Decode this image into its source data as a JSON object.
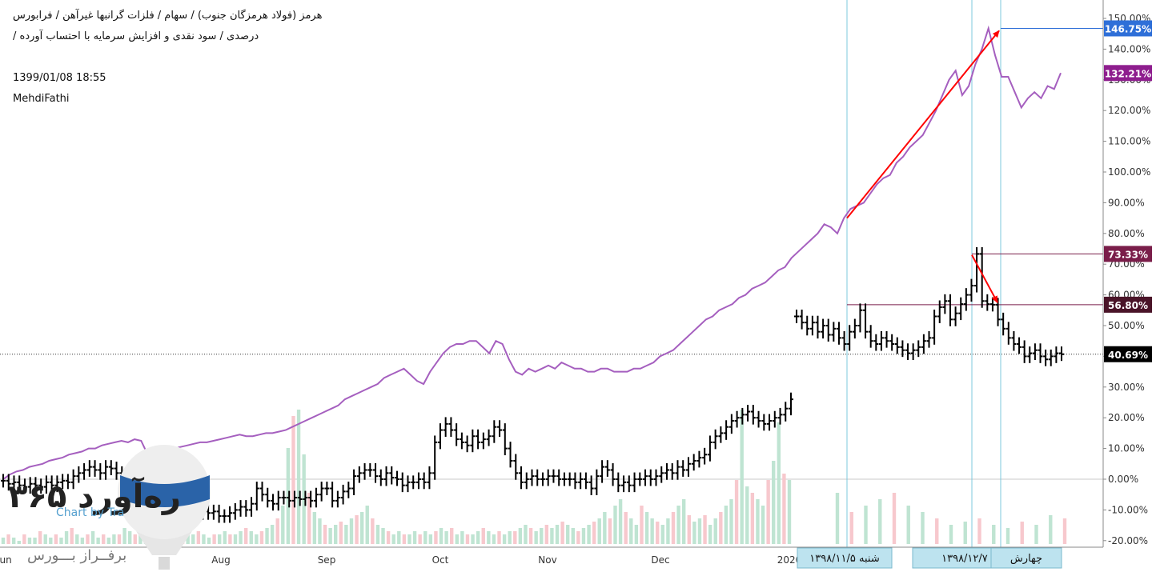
{
  "header": {
    "title_line1": "هرمز (فولاد هرمزگان جنوب) / سهام / فلزات گرانبها غیرآهن / فرابورس",
    "title_line2": "درصدی / سود نقدی و افزایش سرمایه با احتساب آورده /",
    "date": "1399/01/08 18:55",
    "author": "MehdiFathi"
  },
  "watermark": {
    "brand": "ره‌آورد ۳۶۵",
    "subtitle": "برفــراز بـــورس",
    "platform_partial": "Chart by Tra"
  },
  "colors": {
    "index_line": "#a55fbf",
    "price_bars": "#000000",
    "volume_up": "#bfe4d2",
    "volume_down": "#f7c8cd",
    "trend_arrow": "#ff0000",
    "vertical_marker": "#7ec8de",
    "tag_index": "#8e1e8e",
    "tag_high": "#7a1e4a",
    "tag_level": "#4a1428",
    "tag_last": "#000000",
    "tag_peak": "#2e6fd8",
    "date_label_bg": "#bde3ef"
  },
  "chart_data": {
    "type": "line",
    "y_axis": {
      "unit": "%",
      "ylim": [
        -21,
        152
      ],
      "ticks": [
        150,
        140,
        130,
        120,
        110,
        100,
        90,
        80,
        70,
        60,
        50,
        40,
        30,
        20,
        10,
        0,
        -10,
        -20
      ],
      "tick_labels": [
        "150.00%",
        "140.00%",
        "130.00%",
        "120.00%",
        "110.00%",
        "100.00%",
        "90.00%",
        "80.00%",
        "70.00%",
        "60.00%",
        "50.00%",
        "40.00%",
        "30.00%",
        "20.00%",
        "10.00%",
        "0.00%",
        "-10.00%",
        "-20.00%"
      ]
    },
    "x_axis": {
      "labels": [
        "Jun",
        "Aug",
        "Sep",
        "Oct",
        "Nov",
        "Dec",
        "2020"
      ],
      "date_labels": [
        "شنبه ۱۳۹۸/۱۱/۵",
        "چهارشنبه ۱۳۹۸/۱۲/۷",
        "چهارش"
      ]
    },
    "index_series": {
      "name": "",
      "values": [
        0,
        1.5,
        2.5,
        3,
        4,
        4.5,
        5,
        6,
        6.5,
        7,
        8,
        8.5,
        9,
        10,
        10,
        11,
        11.5,
        12,
        12.5,
        12,
        13,
        12.5,
        8,
        6,
        8,
        9,
        10,
        10.5,
        11,
        11.5,
        12,
        12,
        12.5,
        13,
        13.5,
        14,
        14.5,
        14,
        14,
        14.5,
        15,
        15,
        15.5,
        16,
        17,
        18,
        19,
        20,
        21,
        22,
        23,
        24,
        26,
        27,
        28,
        29,
        30,
        31,
        33,
        34,
        35,
        36,
        34,
        32,
        31,
        35,
        38,
        41,
        43,
        44,
        44,
        45,
        45,
        43,
        41,
        45,
        44,
        39,
        35,
        34,
        36,
        35,
        36,
        37,
        36,
        38,
        37,
        36,
        36,
        35,
        35,
        36,
        36,
        35,
        35,
        35,
        36,
        36,
        37,
        38,
        40,
        41,
        42,
        44,
        46,
        48,
        50,
        52,
        53,
        55,
        56,
        57,
        59,
        60,
        62,
        63,
        64,
        66,
        68,
        69,
        72,
        74,
        76,
        78,
        80,
        83,
        82,
        80,
        85,
        88,
        89,
        90,
        93,
        96,
        98,
        99,
        103,
        105,
        108,
        110,
        112,
        116,
        120,
        125,
        130,
        133,
        125,
        128,
        135,
        140,
        146.75,
        138,
        131,
        131,
        126,
        121,
        124,
        126,
        124,
        128,
        127,
        132.21
      ],
      "current_value": "132.21%",
      "peak_value": "146.75%"
    },
    "price_series": {
      "segments": [
        {
          "name": "first_period",
          "values": [
            -0.5,
            -1.5,
            -1,
            -2,
            -2.5,
            -1.5,
            -2,
            -2.5,
            -1,
            -2,
            -1,
            -0.5,
            -1,
            1,
            2,
            3,
            4,
            3,
            2,
            4,
            3.5,
            2,
            -2,
            -1,
            -3,
            -1,
            -4,
            -4,
            -6,
            -6.5,
            -6.5,
            -9,
            -9,
            -10,
            -10.5,
            -10,
            -11,
            -10.5,
            -11,
            -10.5,
            -12,
            -12,
            -11,
            -10,
            -9,
            -10,
            -8,
            -3,
            -5,
            -7,
            -8,
            -6,
            -6,
            -7,
            -6,
            -6.5,
            -6,
            -7,
            -5,
            -3,
            -3,
            -7,
            -6,
            -4,
            -3,
            1,
            2,
            3,
            3,
            1,
            0,
            2,
            0.5,
            0,
            -2,
            -1,
            -1,
            0,
            -1,
            2,
            12,
            16,
            18,
            16,
            13,
            12,
            11,
            14,
            12,
            13,
            14,
            17,
            16,
            10,
            6,
            2,
            -1,
            0,
            1,
            0,
            0,
            1,
            1,
            0,
            0,
            0,
            -1,
            0,
            -1,
            -3,
            1,
            4,
            3,
            0,
            -2,
            -1,
            -2,
            0,
            0,
            1,
            0,
            1,
            2,
            3,
            2,
            4,
            3,
            5,
            6,
            7,
            8,
            12,
            14,
            15,
            17,
            19,
            20,
            21,
            22,
            20,
            19,
            18,
            19,
            20,
            21,
            23,
            26
          ]
        },
        {
          "name": "second_period",
          "values": [
            53,
            51,
            49,
            51,
            48,
            50,
            47,
            49,
            46,
            44,
            48,
            50,
            55,
            48,
            45,
            44,
            46,
            45,
            44,
            43,
            42,
            41,
            42,
            43,
            45,
            46,
            53,
            56,
            58,
            52,
            54,
            57,
            60,
            63,
            73.33,
            58,
            57,
            56.8,
            52,
            49,
            46,
            44,
            43,
            40,
            41,
            42,
            40,
            39,
            40,
            41,
            40.69
          ],
          "last_value": "40.69%",
          "high_value": "73.33%",
          "level_value": "56.80%"
        }
      ]
    },
    "volume_series": {
      "name": "",
      "note": "volume histogram at the bottom of the chart",
      "values": [
        2,
        3,
        2,
        1,
        3,
        2,
        2,
        4,
        3,
        2,
        3,
        2,
        4,
        5,
        3,
        2,
        3,
        4,
        2,
        3,
        2,
        3,
        3,
        5,
        4,
        3,
        4,
        3,
        2,
        3,
        2,
        3,
        2,
        2,
        4,
        3,
        3,
        4,
        3,
        2,
        3,
        3,
        4,
        3,
        3,
        4,
        5,
        4,
        3,
        4,
        5,
        6,
        8,
        12,
        30,
        40,
        42,
        28,
        16,
        10,
        8,
        6,
        5,
        6,
        7,
        6,
        8,
        9,
        10,
        12,
        8,
        6,
        5,
        4,
        3,
        4,
        3,
        3,
        4,
        3,
        4,
        3,
        4,
        5,
        4,
        5,
        3,
        4,
        3,
        3,
        4,
        5,
        4,
        3,
        4,
        3,
        4,
        4,
        5,
        6,
        5,
        4,
        5,
        6,
        5,
        6,
        7,
        6,
        5,
        4,
        5,
        6,
        7,
        8,
        10,
        8,
        12,
        14,
        10,
        8,
        6,
        12,
        10,
        8,
        7,
        6,
        8,
        10,
        12,
        14,
        9,
        7,
        8,
        9,
        6,
        8,
        10,
        12,
        14,
        20,
        42,
        18,
        16,
        14,
        12,
        20,
        26,
        38,
        22,
        20,
        16,
        10,
        12,
        14,
        16,
        12,
        10,
        8,
        6,
        7,
        8,
        6,
        5,
        7,
        6,
        9,
        8
      ]
    },
    "annotations": {
      "vertical_markers": 3,
      "trend_arrows": 2,
      "level_lines": [
        "146.75%",
        "73.33%",
        "56.80%"
      ],
      "last_price_dotted_line": "40.69%"
    }
  }
}
